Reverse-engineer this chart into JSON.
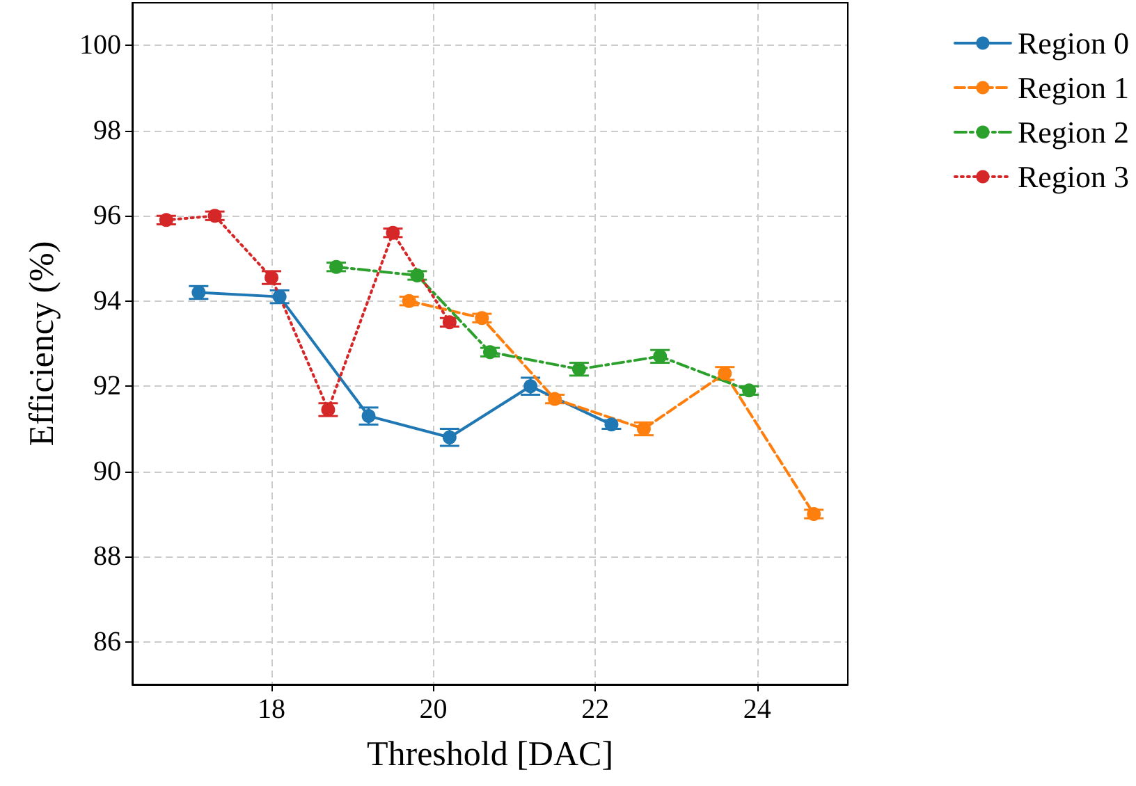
{
  "chart_data": {
    "type": "line",
    "xlabel": "Threshold [DAC]",
    "ylabel": "Efficiency (%)",
    "xlim": [
      16.28,
      25.12
    ],
    "xticks": [
      18,
      20,
      22,
      24
    ],
    "ylim": [
      85,
      101
    ],
    "yticks": [
      86,
      88,
      90,
      92,
      94,
      96,
      98,
      100
    ],
    "grid": true,
    "legend": "top right",
    "marker": "circle",
    "series": [
      {
        "name": "Region 0",
        "color": "#1f77b4",
        "line_style": "solid",
        "x": [
          17.1,
          18.1,
          19.2,
          20.2,
          21.2,
          22.2
        ],
        "values": [
          94.2,
          94.1,
          91.3,
          90.8,
          92.0,
          91.1
        ],
        "errors": [
          0.15,
          0.15,
          0.2,
          0.2,
          0.2,
          0.1
        ]
      },
      {
        "name": "Region 1",
        "color": "#ff7f0e",
        "line_style": "dashed",
        "x": [
          19.7,
          20.6,
          21.5,
          22.6,
          23.6,
          24.7
        ],
        "values": [
          94.0,
          93.6,
          91.7,
          91.0,
          92.3,
          89.0
        ],
        "errors": [
          0.1,
          0.1,
          0.1,
          0.15,
          0.15,
          0.1
        ]
      },
      {
        "name": "Region 2",
        "color": "#2ca02c",
        "line_style": "dashdot",
        "x": [
          18.8,
          19.8,
          20.7,
          21.8,
          22.8,
          23.9
        ],
        "values": [
          94.8,
          94.6,
          92.8,
          92.4,
          92.7,
          91.9
        ],
        "errors": [
          0.1,
          0.1,
          0.1,
          0.15,
          0.15,
          0.1
        ]
      },
      {
        "name": "Region 3",
        "color": "#d62728",
        "line_style": "dotted",
        "x": [
          16.7,
          17.3,
          18.0,
          18.7,
          19.5,
          20.2
        ],
        "values": [
          95.9,
          96.0,
          94.55,
          91.45,
          95.6,
          93.5
        ],
        "errors": [
          0.1,
          0.1,
          0.15,
          0.15,
          0.1,
          0.1
        ]
      }
    ]
  }
}
